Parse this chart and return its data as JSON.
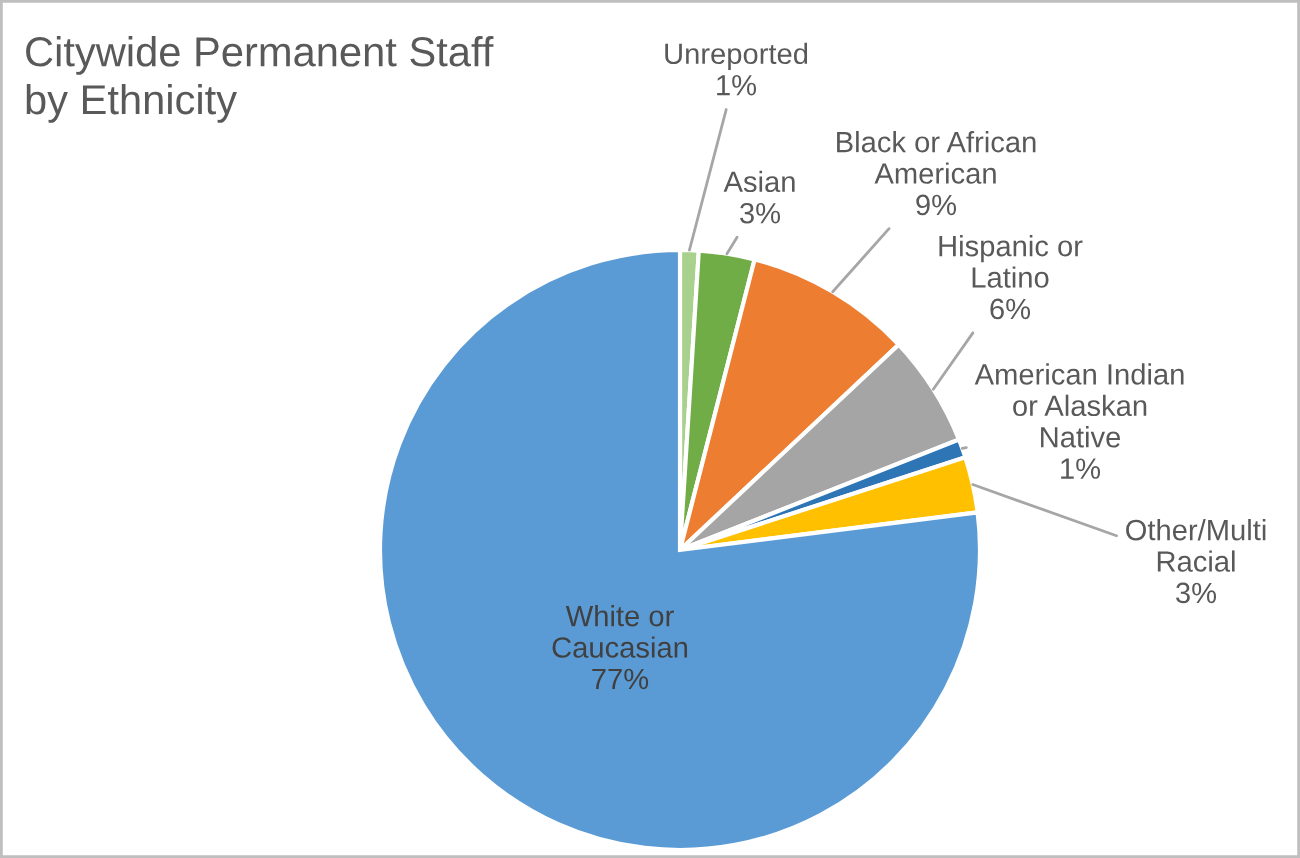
{
  "chart_data": {
    "type": "pie",
    "title": "Citywide Permanent Staff by Ethnicity",
    "categories": [
      "Unreported",
      "Asian",
      "Black or African American",
      "Hispanic or Latino",
      "American Indian or Alaskan Native",
      "Other/Multi Racial",
      "White or Caucasian"
    ],
    "values": [
      1,
      3,
      9,
      6,
      1,
      3,
      77
    ],
    "value_labels": [
      "1%",
      "3%",
      "9%",
      "6%",
      "1%",
      "3%",
      "77%"
    ],
    "colors": [
      "#a9d18e",
      "#70ad47",
      "#ed7d31",
      "#a5a5a5",
      "#2e75b6",
      "#ffc000",
      "#5b9bd5"
    ],
    "legend": false
  }
}
